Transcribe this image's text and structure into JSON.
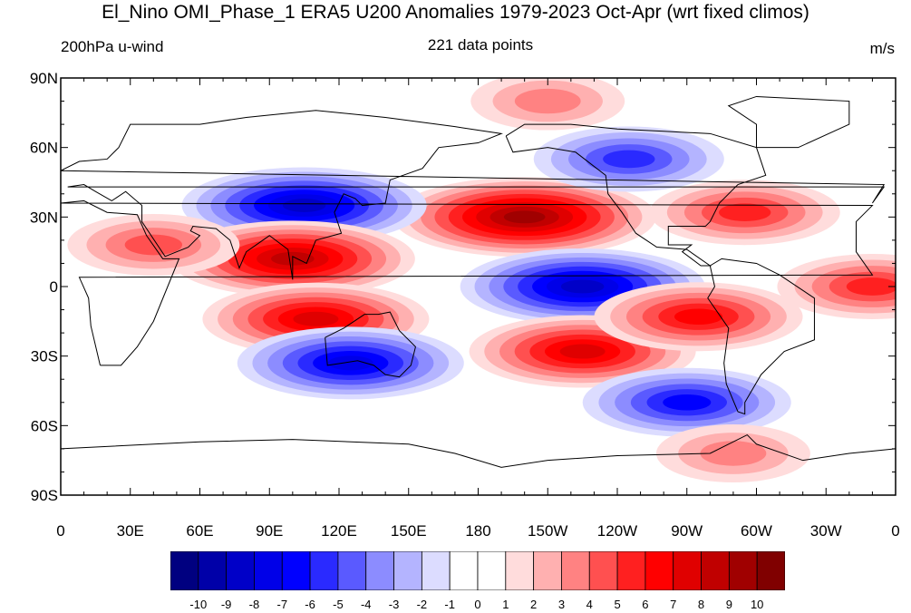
{
  "title": "El_Nino OMI_Phase_1 ERA5 U200 Anomalies 1979-2023 Oct-Apr (wrt fixed climos)",
  "left_label": "200hPa u-wind",
  "center_label": "221 data points",
  "units_label": "m/s",
  "lat_ticks": [
    "90N",
    "60N",
    "30N",
    "0",
    "30S",
    "60S",
    "90S"
  ],
  "lon_ticks": [
    "0",
    "30E",
    "60E",
    "90E",
    "120E",
    "150E",
    "180",
    "150W",
    "120W",
    "90W",
    "60W",
    "30W",
    "0"
  ],
  "colorbar": {
    "labels": [
      "-10",
      "-9",
      "-8",
      "-7",
      "-6",
      "-5",
      "-4",
      "-3",
      "-2",
      "-1",
      "0",
      "1",
      "2",
      "3",
      "4",
      "5",
      "6",
      "7",
      "8",
      "9",
      "10"
    ],
    "colors": [
      "#000080",
      "#0000a8",
      "#0000c8",
      "#0000e8",
      "#0000ff",
      "#2a2aff",
      "#5a5aff",
      "#8c8cff",
      "#b4b4ff",
      "#dcdcff",
      "#ffffff",
      "#ffffff",
      "#ffdcdc",
      "#ffb0b0",
      "#ff8282",
      "#ff5050",
      "#ff2020",
      "#ff0000",
      "#e00000",
      "#c00000",
      "#a00000",
      "#800000"
    ]
  },
  "chart_data": {
    "type": "heatmap",
    "variable": "200hPa u-wind",
    "units": "m/s",
    "n_points": 221,
    "colorbar_range": [
      -10,
      10
    ],
    "lon_range": [
      0,
      360
    ],
    "lat_range": [
      -90,
      90
    ],
    "anomaly_features": [
      {
        "lon": 200,
        "lat": 30,
        "value": 9
      },
      {
        "lon": 225,
        "lat": 0,
        "value": -8
      },
      {
        "lon": 105,
        "lat": 35,
        "value": -8
      },
      {
        "lon": 100,
        "lat": 12,
        "value": 8
      },
      {
        "lon": 110,
        "lat": -14,
        "value": 7
      },
      {
        "lon": 225,
        "lat": -28,
        "value": 7
      },
      {
        "lon": 125,
        "lat": -33,
        "value": -7
      },
      {
        "lon": 270,
        "lat": -50,
        "value": -6
      },
      {
        "lon": 245,
        "lat": 55,
        "value": -5
      },
      {
        "lon": 295,
        "lat": 32,
        "value": 5
      },
      {
        "lon": 40,
        "lat": 18,
        "value": 4
      },
      {
        "lon": 350,
        "lat": 0,
        "value": 5
      },
      {
        "lon": 275,
        "lat": -13,
        "value": 6
      },
      {
        "lon": 210,
        "lat": 80,
        "value": 3
      },
      {
        "lon": 290,
        "lat": -72,
        "value": 3
      }
    ]
  }
}
